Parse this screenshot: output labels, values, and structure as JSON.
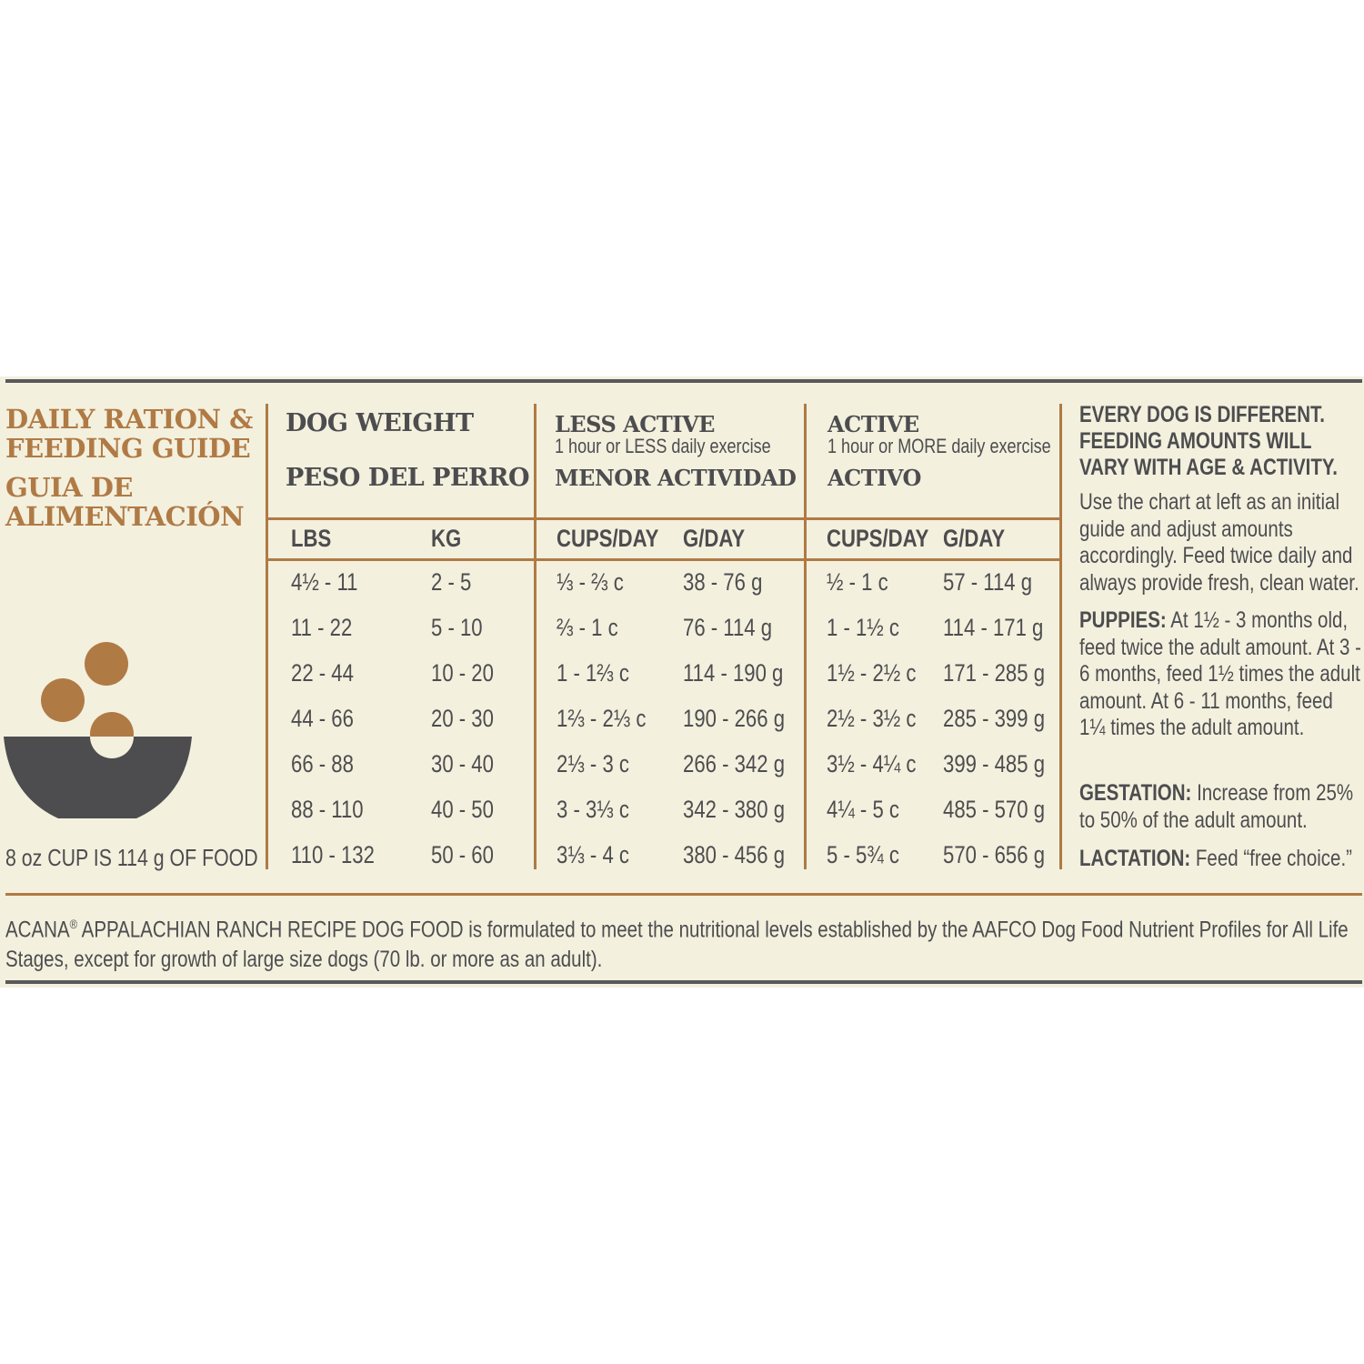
{
  "colors": {
    "accent": "#b07a45",
    "text": "#4d4d4f",
    "background": "#f3f0de",
    "bowl": "#4d4d4f"
  },
  "title": {
    "line1": "DAILY RATION &",
    "line2": "FEEDING GUIDE",
    "line3": "GUIA DE",
    "line4": "ALIMENTACIÓN"
  },
  "bowl_icon": "food-bowl-icon",
  "cup_note": "8 oz CUP IS 114 g OF FOOD",
  "groups": {
    "weight": {
      "title": "DOG WEIGHT",
      "title_es": "PESO DEL PERRO"
    },
    "less_active": {
      "title": "LESS ACTIVE",
      "subtitle": "1 hour or LESS daily exercise",
      "title_es": "MENOR ACTIVIDAD"
    },
    "active": {
      "title": "ACTIVE",
      "subtitle": "1 hour or MORE daily exercise",
      "title_es": "ACTIVO"
    }
  },
  "columns": [
    "LBS",
    "KG",
    "CUPS/DAY",
    "G/DAY",
    "CUPS/DAY",
    "G/DAY"
  ],
  "rows": [
    [
      "4½ - 11",
      "2 - 5",
      "⅓ - ⅔ c",
      "38 - 76 g",
      "½ - 1 c",
      "57 - 114 g"
    ],
    [
      "11 - 22",
      "5 - 10",
      "⅔ - 1 c",
      "76 - 114 g",
      "1 - 1½ c",
      "114 - 171 g"
    ],
    [
      "22 - 44",
      "10 - 20",
      "1 - 1⅔ c",
      "114 - 190 g",
      "1½ - 2½ c",
      "171 - 285 g"
    ],
    [
      "44 - 66",
      "20 - 30",
      "1⅔ - 2⅓ c",
      "190 - 266 g",
      "2½ - 3½ c",
      "285 - 399 g"
    ],
    [
      "66 - 88",
      "30 - 40",
      "2⅓ - 3 c",
      "266 - 342 g",
      "3½ - 4¼ c",
      "399 - 485 g"
    ],
    [
      "88 - 110",
      "40 - 50",
      "3 - 3⅓ c",
      "342 - 380 g",
      "4¼ - 5 c",
      "485 - 570 g"
    ],
    [
      "110 - 132",
      "50 - 60",
      "3⅓ - 4 c",
      "380 - 456 g",
      "5 - 5¾ c",
      "570 - 656 g"
    ]
  ],
  "side": {
    "heading1": "EVERY DOG IS DIFFERENT.",
    "heading2": "FEEDING AMOUNTS WILL",
    "heading3": "VARY WITH AGE & ACTIVITY.",
    "intro": "Use the chart at left as an initial guide and adjust amounts accordingly. Feed twice daily and always provide fresh, clean water.",
    "puppies_label": "PUPPIES:",
    "puppies_text": " At 1½ - 3 months old, feed twice the adult amount. At 3 - 6 months, feed 1½ times the adult amount. At 6 - 11 months, feed 1¼ times the adult amount.",
    "gestation_label": "GESTATION:",
    "gestation_text": " Increase from 25% to 50% of the adult amount.",
    "lactation_label": "LACTATION:",
    "lactation_text": " Feed “free choice.”"
  },
  "footer": {
    "brand": "ACANA",
    "reg": "®",
    "text": " APPALACHIAN RANCH RECIPE DOG FOOD is formulated to meet the nutritional levels established by the AAFCO Dog Food Nutrient Profiles for All Life Stages, except for growth of large size dogs (70 lb. or more as an adult)."
  }
}
